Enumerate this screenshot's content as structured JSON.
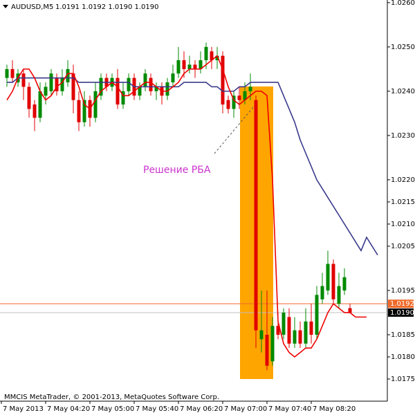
{
  "chart_data": {
    "type": "candlestick",
    "title": "AUDUSD,M5",
    "quote": "1.0191 1.0192 1.0190 1.0190",
    "footer": "MMCIS MetaTrader, © 2001-2013, MetaQuotes Software Corp.",
    "annotation": "Решение РБА",
    "categories": [
      "7 May 2013",
      null,
      null,
      null,
      null,
      null,
      null,
      null,
      "7 May 04:20",
      null,
      null,
      null,
      null,
      null,
      null,
      null,
      "7 May 05:00",
      null,
      null,
      null,
      null,
      null,
      null,
      null,
      "7 May 05:40",
      null,
      null,
      null,
      null,
      null,
      null,
      null,
      "7 May 06:20",
      null,
      null,
      null,
      null,
      null,
      null,
      null,
      "7 May 07:00",
      null,
      null,
      null,
      null,
      null,
      null,
      null,
      "7 May 07:40",
      null,
      null,
      null,
      null,
      null,
      null,
      null,
      "7 May 08:20",
      null,
      null,
      null,
      null,
      null,
      null,
      null,
      null,
      null,
      null,
      null
    ],
    "open": [
      1.0243,
      1.0245,
      1.0242,
      1.0244,
      1.0241,
      1.0237,
      1.0234,
      1.0239,
      1.024,
      1.0243,
      1.024,
      1.0242,
      1.0244,
      1.0238,
      1.0233,
      1.0238,
      1.0234,
      1.0239,
      1.0243,
      1.0241,
      1.0243,
      1.0237,
      1.024,
      1.0243,
      1.0239,
      1.0241,
      1.0243,
      1.024,
      1.0241,
      1.0239,
      1.0242,
      1.0244,
      1.0247,
      1.0245,
      1.0246,
      1.0245,
      1.0247,
      1.0249,
      1.0247,
      1.0248,
      1.0238,
      1.0236,
      1.0239,
      1.0238,
      1.024,
      1.0238,
      1.0184,
      1.0185,
      1.0179,
      1.0187,
      1.0185,
      1.0189,
      1.0183,
      1.0186,
      1.0183,
      1.0188,
      1.0185,
      1.0193,
      1.0195,
      1.0201,
      1.0192,
      1.0195,
      1.0191,
      null,
      null,
      null,
      null,
      null
    ],
    "high": [
      1.0246,
      1.0247,
      1.0245,
      1.0245,
      1.0242,
      1.0238,
      1.0242,
      1.0242,
      1.0245,
      1.0244,
      1.0245,
      1.0247,
      1.0246,
      1.024,
      1.024,
      1.0239,
      1.0242,
      1.0244,
      1.0244,
      1.0244,
      1.0245,
      1.0242,
      1.0244,
      1.0244,
      1.0242,
      1.0245,
      1.0244,
      1.0242,
      1.0242,
      1.0243,
      1.0246,
      1.025,
      1.0249,
      1.0248,
      1.0247,
      1.0249,
      1.0251,
      1.025,
      1.025,
      1.0249,
      1.0239,
      1.024,
      1.0241,
      1.0242,
      1.0244,
      1.0239,
      1.0195,
      1.0195,
      1.0189,
      1.019,
      1.0191,
      1.0191,
      1.0189,
      1.0188,
      1.0191,
      1.0192,
      1.0196,
      1.0199,
      1.0204,
      1.0202,
      1.0199,
      1.02,
      1.0192,
      null,
      null,
      null,
      null,
      null
    ],
    "low": [
      1.0241,
      1.0242,
      1.0241,
      1.0238,
      1.0234,
      1.0231,
      1.0233,
      1.0237,
      1.0239,
      1.0239,
      1.0239,
      1.0241,
      1.0235,
      1.0231,
      1.0232,
      1.0232,
      1.0233,
      1.0238,
      1.024,
      1.024,
      1.0236,
      1.0236,
      1.0239,
      1.0238,
      1.0238,
      1.024,
      1.0239,
      1.0238,
      1.0237,
      1.0238,
      1.0241,
      1.0243,
      1.0243,
      1.0244,
      1.0243,
      1.0244,
      1.0245,
      1.0245,
      1.0245,
      1.0235,
      1.0235,
      1.0234,
      1.0236,
      1.0237,
      1.0238,
      1.0182,
      1.0181,
      1.0177,
      1.0178,
      1.0184,
      1.0184,
      1.0182,
      1.0182,
      1.0182,
      1.0182,
      1.0183,
      1.0184,
      1.0192,
      1.0194,
      1.0192,
      1.0191,
      1.0194,
      1.019,
      null,
      null,
      null,
      null,
      null
    ],
    "close": [
      1.0245,
      1.0243,
      1.0244,
      1.0241,
      1.0236,
      1.0234,
      1.024,
      1.0241,
      1.0244,
      1.024,
      1.0243,
      1.0245,
      1.0238,
      1.0233,
      1.0238,
      1.0234,
      1.024,
      1.0243,
      1.0241,
      1.0243,
      1.0237,
      1.024,
      1.0243,
      1.0239,
      1.0241,
      1.0244,
      1.024,
      1.0241,
      1.0239,
      1.0242,
      1.0244,
      1.0247,
      1.0245,
      1.0246,
      1.0245,
      1.0247,
      1.025,
      1.0247,
      1.0248,
      1.0237,
      1.0236,
      1.0239,
      1.0238,
      1.024,
      1.0241,
      1.0186,
      1.0186,
      1.0178,
      1.0187,
      1.0185,
      1.019,
      1.0183,
      1.0186,
      1.0183,
      1.0188,
      1.0185,
      1.0194,
      1.0196,
      1.0201,
      1.0193,
      1.0196,
      1.0198,
      1.019,
      null,
      null,
      null,
      null,
      null
    ],
    "up_color": "#008a00",
    "down_color": "#e00000",
    "series": [
      {
        "color": "#3a3a8c",
        "values": [
          1.0242,
          1.0242,
          1.0243,
          1.0243,
          1.0243,
          1.0243,
          1.0243,
          1.0243,
          1.0243,
          1.0243,
          1.0243,
          1.0243,
          1.0243,
          1.0242,
          1.0242,
          1.0242,
          1.0242,
          1.0242,
          1.0242,
          1.0242,
          1.0242,
          1.0242,
          1.0242,
          1.0241,
          1.0241,
          1.0241,
          1.0241,
          1.0241,
          1.0241,
          1.0241,
          1.0241,
          1.0241,
          1.0242,
          1.0242,
          1.0242,
          1.0242,
          1.0242,
          1.0241,
          1.0241,
          1.024,
          1.024,
          1.024,
          1.0241,
          1.0241,
          1.0242,
          1.0242,
          1.0242,
          1.0242,
          1.0242,
          1.0242,
          1.0239,
          1.0236,
          1.0233,
          1.0229,
          1.0226,
          1.0223,
          1.022,
          1.0218,
          1.0216,
          1.0214,
          1.0212,
          1.021,
          1.0208,
          1.0206,
          1.0204,
          1.0207,
          1.0205,
          1.0203
        ]
      },
      {
        "color": "#ee0000",
        "values": [
          1.0238,
          1.024,
          1.0243,
          1.0245,
          1.0245,
          1.0243,
          1.024,
          1.0238,
          1.0239,
          1.0241,
          1.0242,
          1.0244,
          1.0244,
          1.0241,
          1.0237,
          1.0236,
          1.0238,
          1.024,
          1.0241,
          1.0242,
          1.0241,
          1.0239,
          1.0239,
          1.024,
          1.0241,
          1.0242,
          1.0242,
          1.0241,
          1.024,
          1.024,
          1.0241,
          1.0242,
          1.0244,
          1.0245,
          1.0245,
          1.0245,
          1.0246,
          1.0247,
          1.0248,
          1.0245,
          1.0241,
          1.0238,
          1.0237,
          1.0238,
          1.0239,
          1.024,
          1.024,
          1.0239,
          1.022,
          1.0188,
          1.0183,
          1.0181,
          1.018,
          1.0181,
          1.0182,
          1.0182,
          1.0184,
          1.0187,
          1.019,
          1.0192,
          1.0191,
          1.019,
          1.019,
          1.0189,
          1.0189,
          1.0189,
          null,
          null
        ]
      }
    ],
    "price_lines": [
      {
        "value": 1.0192,
        "label": "1.0192",
        "color": "#f06a2a",
        "box": "#f06a2a"
      },
      {
        "value": 1.019,
        "label": "1.0190",
        "color": "#c0c0c0",
        "box": "#000000"
      }
    ],
    "ylim": [
      1.017,
      1.02606
    ],
    "yticks": [
      {
        "value": 1.026,
        "label": "1.0260"
      },
      {
        "value": 1.025,
        "label": "1.0250"
      },
      {
        "value": 1.024,
        "label": "1.0240"
      },
      {
        "value": 1.023,
        "label": "1.0230"
      },
      {
        "value": 1.022,
        "label": "1.0220"
      },
      1.0215,
      {
        "value": 1.021,
        "label": "1.0210"
      },
      1.0205,
      1.0195,
      1.0185,
      {
        "value": 1.018,
        "label": "1.0180"
      },
      1.0175
    ]
  }
}
